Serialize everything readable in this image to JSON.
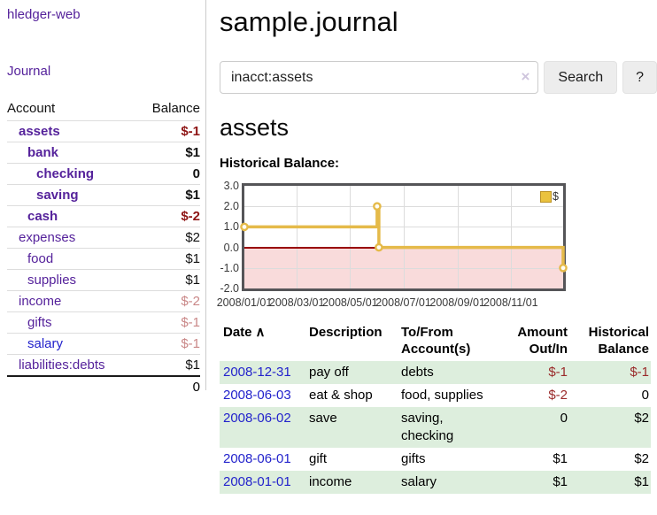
{
  "sidebar": {
    "brand": "hledger-web",
    "journal_link": "Journal",
    "accounts_table": {
      "account_header": "Account",
      "balance_header": "Balance",
      "rows": [
        {
          "name": "assets",
          "indent": 1,
          "bold": true,
          "balance": "$-1",
          "balance_style": "neg-strong"
        },
        {
          "name": "bank",
          "indent": 2,
          "bold": true,
          "balance": "$1",
          "balance_style": "normal"
        },
        {
          "name": "checking",
          "indent": 3,
          "bold": true,
          "balance": "0",
          "balance_style": "normal"
        },
        {
          "name": "saving",
          "indent": 3,
          "bold": true,
          "balance": "$1",
          "balance_style": "normal"
        },
        {
          "name": "cash",
          "indent": 2,
          "bold": true,
          "balance": "$-2",
          "balance_style": "neg-strong"
        },
        {
          "name": "expenses",
          "indent": 1,
          "bold": false,
          "balance": "$2",
          "balance_style": "normal"
        },
        {
          "name": "food",
          "indent": 2,
          "bold": false,
          "balance": "$1",
          "balance_style": "normal"
        },
        {
          "name": "supplies",
          "indent": 2,
          "bold": false,
          "balance": "$1",
          "balance_style": "normal"
        },
        {
          "name": "income",
          "indent": 1,
          "bold": false,
          "balance": "$-2",
          "balance_style": "neg-light"
        },
        {
          "name": "gifts",
          "indent": 2,
          "bold": false,
          "balance": "$-1",
          "balance_style": "neg-light"
        },
        {
          "name": "salary",
          "indent": 2,
          "bold": false,
          "link_color": "blue",
          "balance": "$-1",
          "balance_style": "neg-light"
        },
        {
          "name": "liabilities:debts",
          "indent": 1,
          "bold": false,
          "balance": "$1",
          "balance_style": "normal"
        }
      ],
      "total": "0"
    }
  },
  "main": {
    "title": "sample.journal",
    "search": {
      "value": "inacct:assets",
      "clear_icon": "×",
      "button_label": "Search",
      "help_label": "?"
    },
    "account_heading": "assets",
    "chart_label": "Historical Balance:"
  },
  "chart_data": {
    "type": "line",
    "step": true,
    "title": "Historical Balance",
    "legend": [
      {
        "label": "$",
        "color": "#eac23e"
      }
    ],
    "ylim": [
      -2,
      3
    ],
    "y_ticks": [
      3.0,
      2.0,
      1.0,
      0.0,
      -1.0,
      -2.0
    ],
    "x_axis_days": [
      0,
      365
    ],
    "x_ticks": [
      {
        "label": "2008/01/01",
        "day": 0
      },
      {
        "label": "2008/03/01",
        "day": 60
      },
      {
        "label": "2008/05/01",
        "day": 121
      },
      {
        "label": "2008/07/01",
        "day": 182
      },
      {
        "label": "2008/09/01",
        "day": 244
      },
      {
        "label": "2008/11/01",
        "day": 305
      }
    ],
    "series": [
      {
        "name": "$",
        "color": "#e5ba49",
        "points": [
          {
            "date": "2008-01-01",
            "day": 0,
            "y": 1
          },
          {
            "date": "2008-06-01",
            "day": 152,
            "y": 2
          },
          {
            "date": "2008-06-03",
            "day": 154,
            "y": 0
          },
          {
            "date": "2008-12-31",
            "day": 365,
            "y": -1
          }
        ]
      }
    ],
    "negative_region_color": "#f9dbdb",
    "zero_line_color": "#990000",
    "grid": true
  },
  "register_table": {
    "headers": {
      "date": "Date",
      "sort_icon": "∧",
      "description": "Description",
      "accounts": "To/From Account(s)",
      "amount": "Amount Out/In",
      "balance": "Historical Balance"
    },
    "rows": [
      {
        "date": "2008-12-31",
        "description": "pay off",
        "accounts": "debts",
        "amount": "$-1",
        "amount_negative": true,
        "balance": "$-1",
        "balance_negative": true,
        "shaded": true
      },
      {
        "date": "2008-06-03",
        "description": "eat & shop",
        "accounts": "food, supplies",
        "amount": "$-2",
        "amount_negative": true,
        "balance": "0",
        "balance_negative": false,
        "shaded": false
      },
      {
        "date": "2008-06-02",
        "description": "save",
        "accounts": "saving, checking",
        "amount": "0",
        "amount_negative": false,
        "balance": "$2",
        "balance_negative": false,
        "shaded": true
      },
      {
        "date": "2008-06-01",
        "description": "gift",
        "accounts": "gifts",
        "amount": "$1",
        "amount_negative": false,
        "balance": "$2",
        "balance_negative": false,
        "shaded": false
      },
      {
        "date": "2008-01-01",
        "description": "income",
        "accounts": "salary",
        "amount": "$1",
        "amount_negative": false,
        "balance": "$1",
        "balance_negative": false,
        "shaded": true
      }
    ]
  }
}
